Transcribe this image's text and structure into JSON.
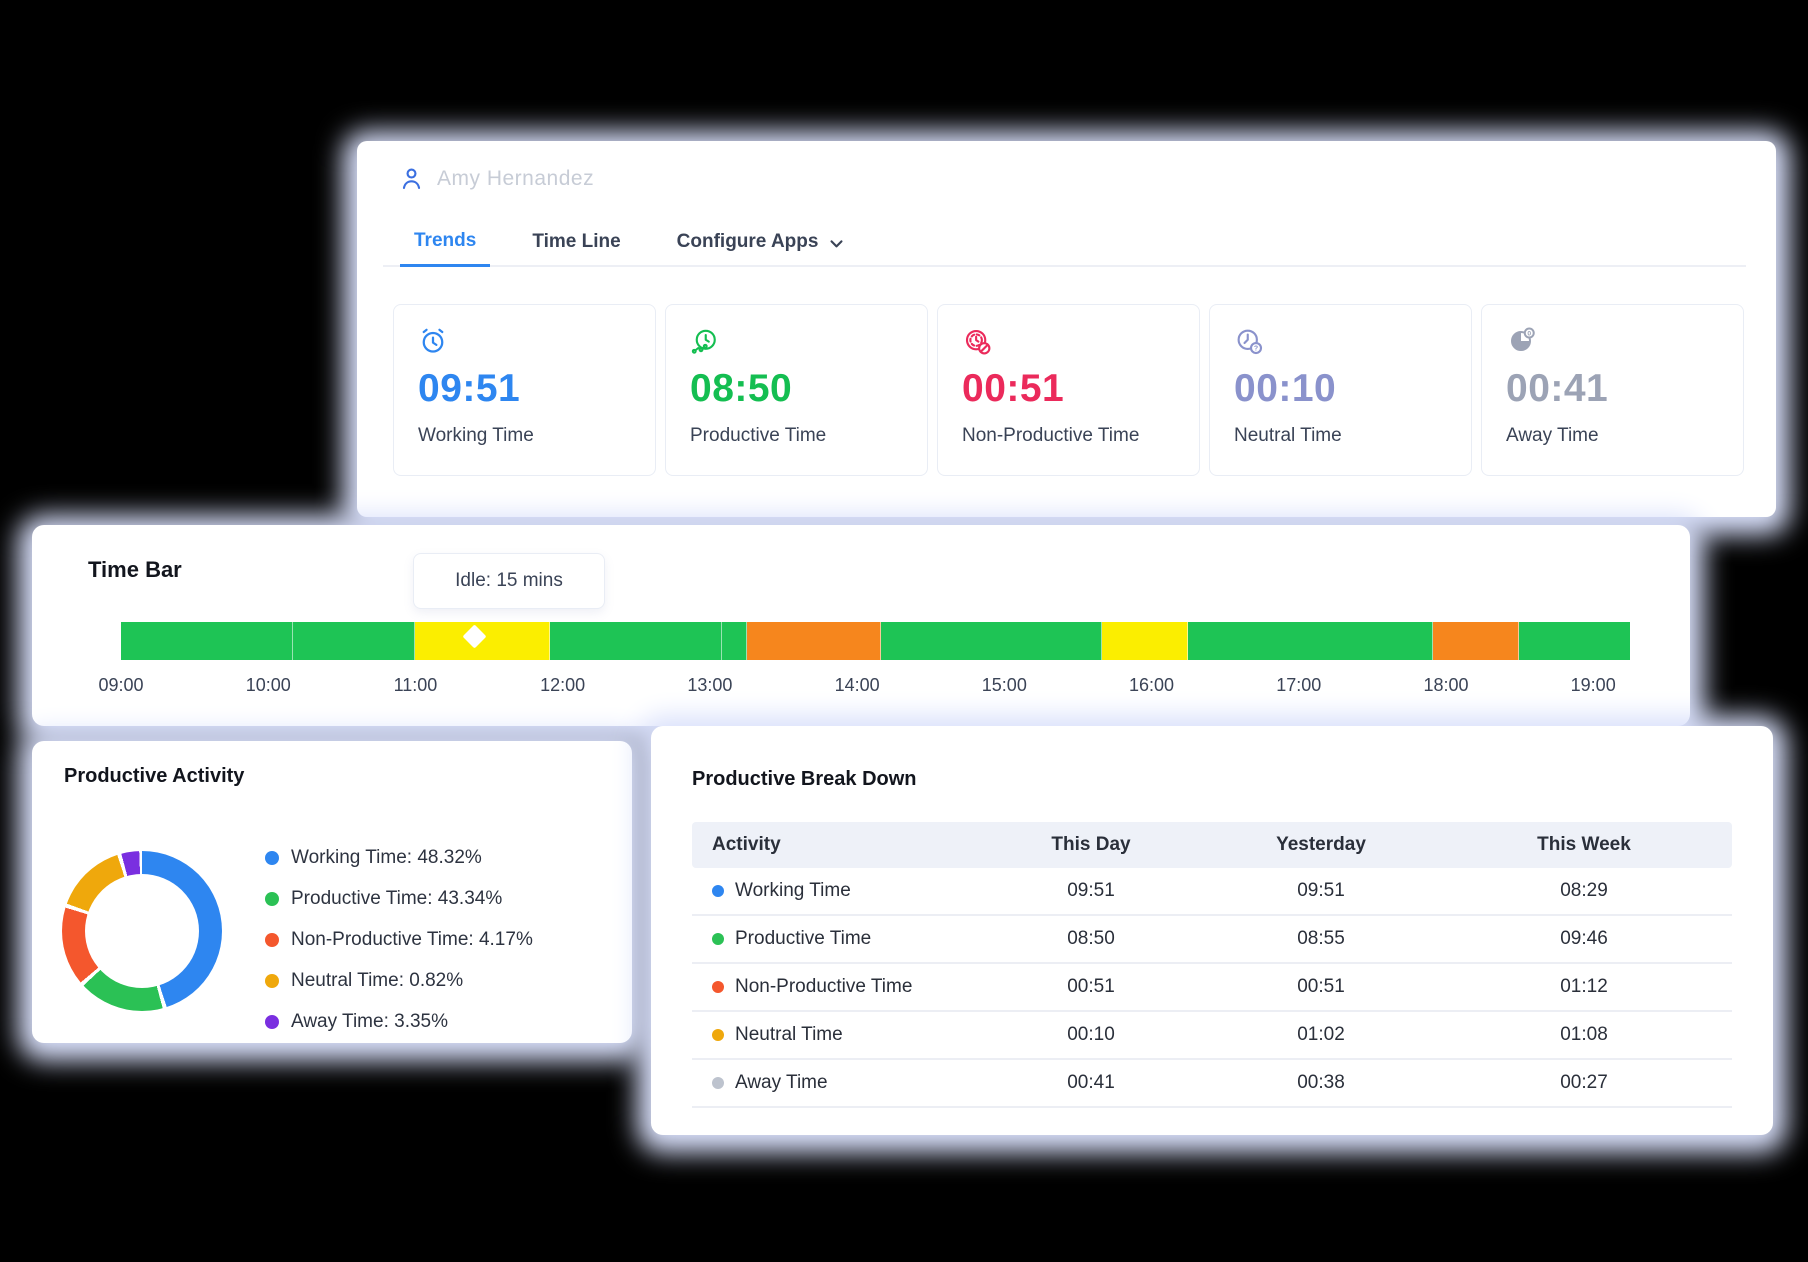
{
  "header": {
    "user_name": "Amy Hernandez",
    "tabs": [
      {
        "id": "trends",
        "label": "Trends",
        "active": true
      },
      {
        "id": "timeline",
        "label": "Time Line",
        "active": false
      },
      {
        "id": "configure-apps",
        "label": "Configure Apps",
        "active": false,
        "has_dropdown": true
      }
    ]
  },
  "stats": [
    {
      "id": "working",
      "icon": "alarm-clock-icon",
      "value": "09:51",
      "label": "Working Time",
      "color": "#2e86f0"
    },
    {
      "id": "productive",
      "icon": "productive-clock-icon",
      "value": "08:50",
      "label": "Productive Time",
      "color": "#14be51"
    },
    {
      "id": "non-productive",
      "icon": "non-productive-clock-icon",
      "value": "00:51",
      "label": "Non-Productive Time",
      "color": "#eb2a5b"
    },
    {
      "id": "neutral",
      "icon": "neutral-clock-icon",
      "value": "00:10",
      "label": "Neutral Time",
      "color": "#8a92cc"
    },
    {
      "id": "away",
      "icon": "away-clock-icon",
      "value": "00:41",
      "label": "Away Time",
      "color": "#9ca3b5"
    }
  ],
  "time_bar": {
    "title": "Time Bar",
    "tooltip": "Idle: 15 mins",
    "axis_labels": [
      "09:00",
      "10:00",
      "11:00",
      "12:00",
      "13:00",
      "14:00",
      "15:00",
      "16:00",
      "17:00",
      "18:00",
      "19:00"
    ],
    "axis_span_hours": 10.25,
    "colors": {
      "productive": "#1ec455",
      "idle": "#fbee00",
      "non_productive": "#f6861d"
    },
    "segments": [
      {
        "start": "09:00",
        "end": "10:10",
        "type": "productive",
        "width_pct": 11.38
      },
      {
        "start": "10:10",
        "end": "11:00",
        "type": "productive",
        "width_pct": 8.13
      },
      {
        "start": "11:00",
        "end": "11:55",
        "type": "idle",
        "width_pct": 8.94
      },
      {
        "start": "11:55",
        "end": "13:05",
        "type": "productive",
        "width_pct": 11.38
      },
      {
        "start": "13:05",
        "end": "13:15",
        "type": "productive",
        "width_pct": 1.63
      },
      {
        "start": "13:15",
        "end": "14:10",
        "type": "non_productive",
        "width_pct": 8.94
      },
      {
        "start": "14:10",
        "end": "15:40",
        "type": "productive",
        "width_pct": 14.63
      },
      {
        "start": "15:40",
        "end": "16:15",
        "type": "idle",
        "width_pct": 5.69
      },
      {
        "start": "16:15",
        "end": "17:55",
        "type": "productive",
        "width_pct": 16.26
      },
      {
        "start": "17:55",
        "end": "18:30",
        "type": "non_productive",
        "width_pct": 5.69
      },
      {
        "start": "18:30",
        "end": "19:15",
        "type": "productive",
        "width_pct": 7.32
      }
    ]
  },
  "productive_activity": {
    "title": "Productive Activity",
    "legend": [
      {
        "label": "Working Time",
        "value": "48.32%",
        "color": "#2e86f0"
      },
      {
        "label": "Productive Time",
        "value": "43.34%",
        "color": "#2bc155"
      },
      {
        "label": "Non-Productive Time",
        "value": "4.17%",
        "color": "#f4572d"
      },
      {
        "label": "Neutral Time",
        "value": "0.82%",
        "color": "#efa80c"
      },
      {
        "label": "Away Time",
        "value": "3.35%",
        "color": "#7a2fe0"
      }
    ],
    "donut_visual_arcs_deg": [
      {
        "color": "#2e86f0",
        "from": 0,
        "to": 162
      },
      {
        "color": "#2bc155",
        "from": 165,
        "to": 227
      },
      {
        "color": "#f4572d",
        "from": 230,
        "to": 287
      },
      {
        "color": "#efa80c",
        "from": 290,
        "to": 342
      },
      {
        "color": "#7a2fe0",
        "from": 345,
        "to": 358
      }
    ]
  },
  "breakdown": {
    "title": "Productive Break Down",
    "columns": [
      "Activity",
      "This Day",
      "Yesterday",
      "This Week"
    ],
    "rows": [
      {
        "label": "Working Time",
        "dot_color": "#2e86f0",
        "this_day": "09:51",
        "yesterday": "09:51",
        "this_week": "08:29"
      },
      {
        "label": "Productive Time",
        "dot_color": "#2bc155",
        "this_day": "08:50",
        "yesterday": "08:55",
        "this_week": "09:46"
      },
      {
        "label": "Non-Productive Time",
        "dot_color": "#f4572d",
        "this_day": "00:51",
        "yesterday": "00:51",
        "this_week": "01:12"
      },
      {
        "label": "Neutral Time",
        "dot_color": "#efa80c",
        "this_day": "00:10",
        "yesterday": "01:02",
        "this_week": "01:08"
      },
      {
        "label": "Away Time",
        "dot_color": "#bdc3ce",
        "this_day": "00:41",
        "yesterday": "00:38",
        "this_week": "00:27"
      }
    ]
  },
  "chart_data": [
    {
      "type": "pie",
      "title": "Productive Activity",
      "donut": true,
      "legend_position": "right",
      "categories": [
        "Working Time",
        "Productive Time",
        "Non-Productive Time",
        "Neutral Time",
        "Away Time"
      ],
      "values": [
        48.32,
        43.34,
        4.17,
        0.82,
        3.35
      ],
      "unit": "%"
    },
    {
      "type": "bar",
      "title": "Time Bar",
      "subtype": "timeline-segments",
      "x": [
        "09:00",
        "19:00"
      ],
      "annotation": "Idle: 15 mins",
      "series": [
        {
          "name": "productive",
          "intervals": [
            [
              "09:00",
              "11:00"
            ],
            [
              "11:55",
              "13:15"
            ],
            [
              "14:10",
              "15:40"
            ],
            [
              "16:15",
              "17:55"
            ],
            [
              "18:30",
              "19:15"
            ]
          ]
        },
        {
          "name": "idle",
          "intervals": [
            [
              "11:00",
              "11:55"
            ],
            [
              "15:40",
              "16:15"
            ]
          ]
        },
        {
          "name": "non_productive",
          "intervals": [
            [
              "13:15",
              "14:10"
            ],
            [
              "17:55",
              "18:30"
            ]
          ]
        }
      ]
    },
    {
      "type": "table",
      "title": "Productive Break Down",
      "columns": [
        "Activity",
        "This Day",
        "Yesterday",
        "This Week"
      ],
      "rows": [
        [
          "Working Time",
          "09:51",
          "09:51",
          "08:29"
        ],
        [
          "Productive Time",
          "08:50",
          "08:55",
          "09:46"
        ],
        [
          "Non-Productive Time",
          "00:51",
          "00:51",
          "01:12"
        ],
        [
          "Neutral Time",
          "00:10",
          "01:02",
          "01:08"
        ],
        [
          "Away Time",
          "00:41",
          "00:38",
          "00:27"
        ]
      ]
    }
  ]
}
